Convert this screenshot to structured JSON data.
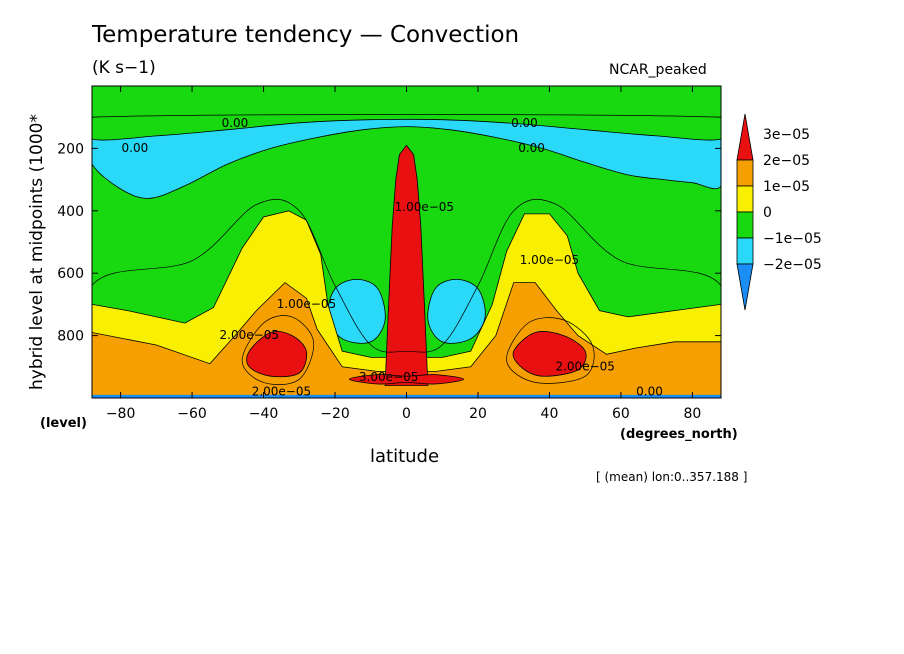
{
  "chart_data": {
    "type": "heatmap",
    "subtype": "filled contour",
    "title": "Temperature tendency — Convection",
    "units": "(K s−1)",
    "dataset": "NCAR_peaked",
    "xlabel": "latitude",
    "xunits": "(degrees_north)",
    "ylabel": "hybrid level at midpoints (1000*",
    "ylevel": "(level)",
    "note": "[ (mean) lon:0..357.188 ]",
    "xlim": [
      -88,
      88
    ],
    "ylim": [
      1000,
      0
    ],
    "y_inverted": true,
    "xticks": [
      -80,
      -60,
      -40,
      -20,
      0,
      20,
      40,
      60,
      80
    ],
    "xtick_labels": [
      "−80",
      "−60",
      "−40",
      "−20",
      "0",
      "20",
      "40",
      "60",
      "80"
    ],
    "yticks": [
      200,
      400,
      600,
      800
    ],
    "ytick_labels": [
      "200",
      "400",
      "600",
      "800"
    ],
    "colorbar": {
      "levels": [
        "3e−05",
        "2e−05",
        "1e−05",
        "0",
        "−1e−05",
        "−2e−05"
      ],
      "colors": [
        "#e81010",
        "#f5a000",
        "#f8f000",
        "#18d810",
        "#2ad8f8",
        "#1a8ef5"
      ]
    },
    "contour_labels": [
      {
        "text": "0.00",
        "lat": -48,
        "lev": 120
      },
      {
        "text": "0.00",
        "lat": 33,
        "lev": 120
      },
      {
        "text": "0.00",
        "lat": -76,
        "lev": 200
      },
      {
        "text": "0.00",
        "lat": 35,
        "lev": 200
      },
      {
        "text": "1.00e−05",
        "lat": 5,
        "lev": 390
      },
      {
        "text": "1.00e−05",
        "lat": 40,
        "lev": 560
      },
      {
        "text": "1.00e−05",
        "lat": -28,
        "lev": 700
      },
      {
        "text": "2.00e−05",
        "lat": -44,
        "lev": 800
      },
      {
        "text": "2.00e−05",
        "lat": 50,
        "lev": 900
      },
      {
        "text": "3.00e−05",
        "lat": -5,
        "lev": 935
      },
      {
        "text": "2.00e−05",
        "lat": -35,
        "lev": 980
      },
      {
        "text": "0.00",
        "lat": 68,
        "lev": 980
      }
    ],
    "grid": false,
    "legend_position": "right"
  }
}
